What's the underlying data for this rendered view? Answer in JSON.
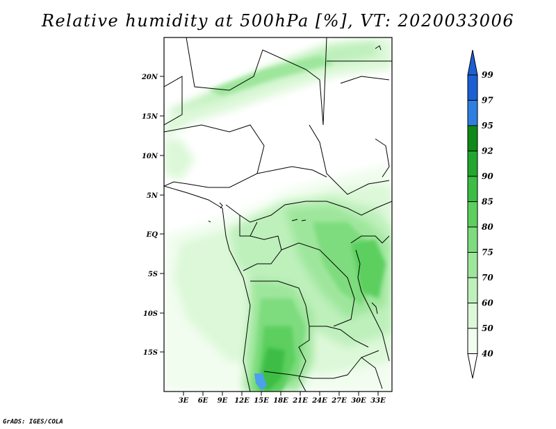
{
  "title": "Relative humidity at 500hPa [%], VT: 2020033006",
  "footer": "GrADS: IGES/COLA",
  "map": {
    "lat_labels": [
      "20N",
      "15N",
      "10N",
      "5N",
      "EQ",
      "5S",
      "10S",
      "15S"
    ],
    "lon_labels": [
      "3E",
      "6E",
      "9E",
      "12E",
      "15E",
      "18E",
      "21E",
      "24E",
      "27E",
      "30E",
      "33E"
    ],
    "extent": {
      "lon_min": 0,
      "lon_max": 35,
      "lat_min": -20,
      "lat_max": 25
    }
  },
  "colorbar": {
    "levels": [
      "99",
      "97",
      "95",
      "92",
      "90",
      "85",
      "80",
      "75",
      "70",
      "60",
      "50",
      "40"
    ],
    "colors": [
      "#1c5fd4",
      "#2f7fe0",
      "#4ca0ec",
      "#0f8a1a",
      "#23a62d",
      "#3cbd44",
      "#5ccf5f",
      "#7edc7e",
      "#9ee69c",
      "#bef0bb",
      "#dcf8d8",
      "#f1fdef",
      "#ffffff"
    ]
  }
}
